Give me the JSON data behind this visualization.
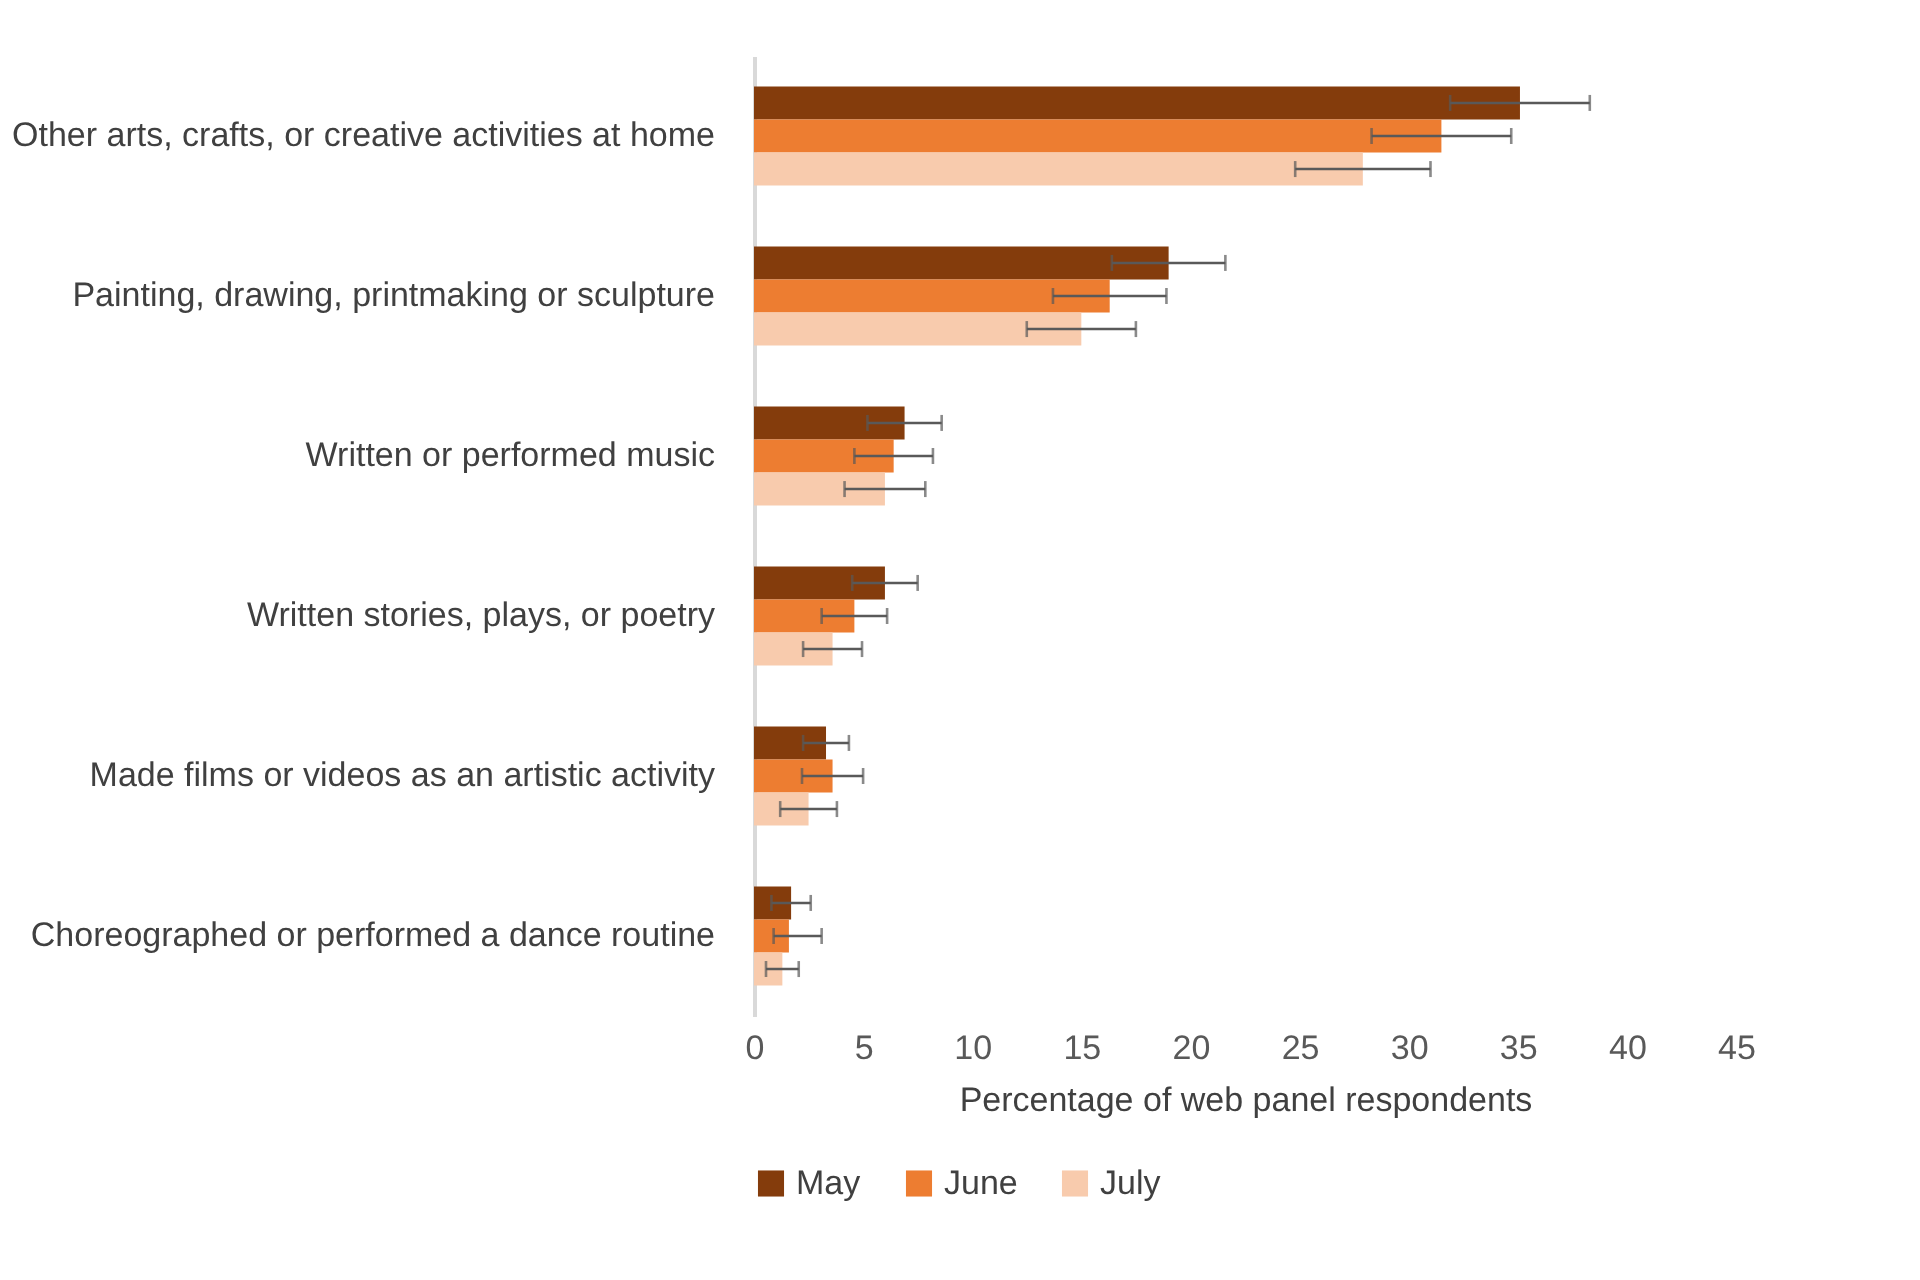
{
  "chart_data": {
    "type": "bar",
    "orientation": "horizontal",
    "xlabel": "Percentage of web panel respondents",
    "categories": [
      "Other arts, crafts, or creative activities at home",
      "Painting, drawing, printmaking or sculpture",
      "Written or performed music",
      "Written stories, plays, or poetry",
      "Made films or videos as an artistic activity",
      "Choreographed or performed a dance routine"
    ],
    "series": [
      {
        "name": "May",
        "color": "#843c0c",
        "values": [
          35.1,
          19.0,
          6.9,
          6.0,
          3.3,
          1.7
        ],
        "errors": [
          3.2,
          2.6,
          1.7,
          1.5,
          1.05,
          0.9
        ]
      },
      {
        "name": "June",
        "color": "#ed7d31",
        "values": [
          31.5,
          16.3,
          6.4,
          4.6,
          3.6,
          1.6
        ],
        "errors": [
          3.2,
          2.6,
          1.8,
          1.5,
          1.4,
          [
            0.9,
            3.1
          ]
        ]
      },
      {
        "name": "July",
        "color": "#f8cbad",
        "values": [
          27.9,
          15.0,
          6.0,
          3.6,
          2.5,
          1.3
        ],
        "errors": [
          3.1,
          2.5,
          1.85,
          1.35,
          1.3,
          0.75
        ]
      }
    ],
    "xlim": [
      0,
      45
    ],
    "xticks": [
      0,
      5,
      10,
      15,
      20,
      25,
      30,
      35,
      40,
      45
    ],
    "grid": false,
    "legend": "bottom"
  }
}
